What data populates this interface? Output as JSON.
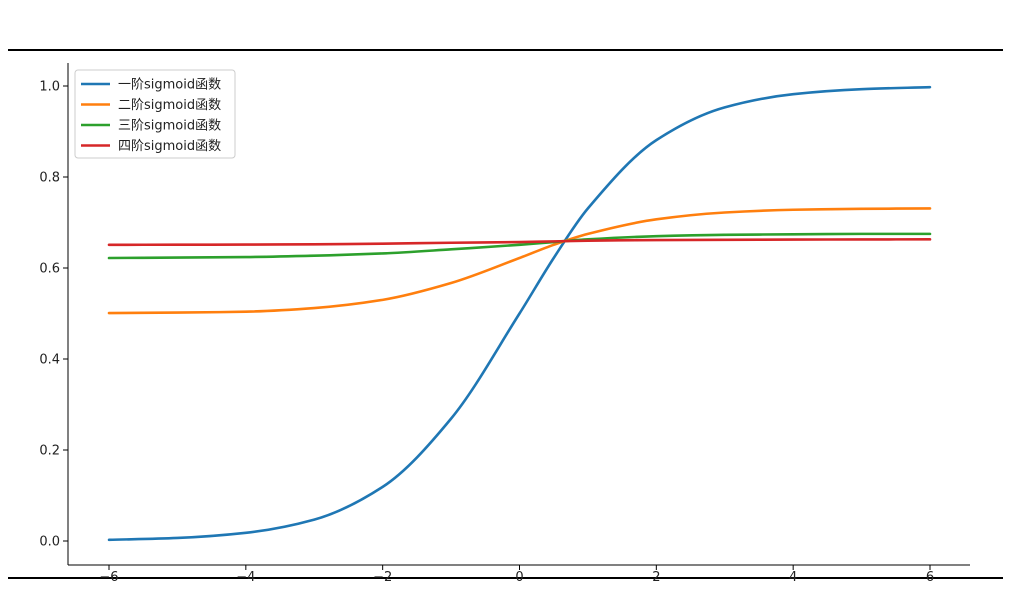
{
  "chart_data": {
    "type": "line",
    "title": "",
    "xlabel": "",
    "ylabel": "",
    "xlim": [
      -6,
      6
    ],
    "ylim": [
      0,
      1.0
    ],
    "x_ticks": [
      "−6",
      "−4",
      "−2",
      "0",
      "2",
      "4",
      "6"
    ],
    "y_ticks": [
      "0.0",
      "0.2",
      "0.4",
      "0.6",
      "0.8",
      "1.0"
    ],
    "grid": false,
    "legend_position": "top-left",
    "x": [
      -6,
      -5,
      -4,
      -3,
      -2,
      -1,
      0,
      0.5,
      1,
      2,
      3,
      4,
      5,
      6
    ],
    "series": [
      {
        "name": "一阶sigmoid函数",
        "color": "#1f77b4",
        "values": [
          0.0025,
          0.0067,
          0.018,
          0.047,
          0.119,
          0.269,
          0.5,
          0.622,
          0.731,
          0.881,
          0.953,
          0.982,
          0.993,
          0.9975
        ]
      },
      {
        "name": "二阶sigmoid函数",
        "color": "#ff7f0e",
        "values": [
          0.501,
          0.502,
          0.504,
          0.512,
          0.53,
          0.567,
          0.622,
          0.651,
          0.675,
          0.707,
          0.722,
          0.728,
          0.73,
          0.731
        ]
      },
      {
        "name": "三阶sigmoid函数",
        "color": "#2ca02c",
        "values": [
          0.622,
          0.623,
          0.624,
          0.627,
          0.632,
          0.641,
          0.651,
          0.657,
          0.663,
          0.67,
          0.673,
          0.674,
          0.675,
          0.675
        ]
      },
      {
        "name": "四阶sigmoid函数",
        "color": "#d62728",
        "values": [
          0.651,
          0.6512,
          0.6515,
          0.652,
          0.6535,
          0.6555,
          0.657,
          0.6585,
          0.66,
          0.6615,
          0.662,
          0.6625,
          0.6628,
          0.663
        ]
      }
    ]
  }
}
